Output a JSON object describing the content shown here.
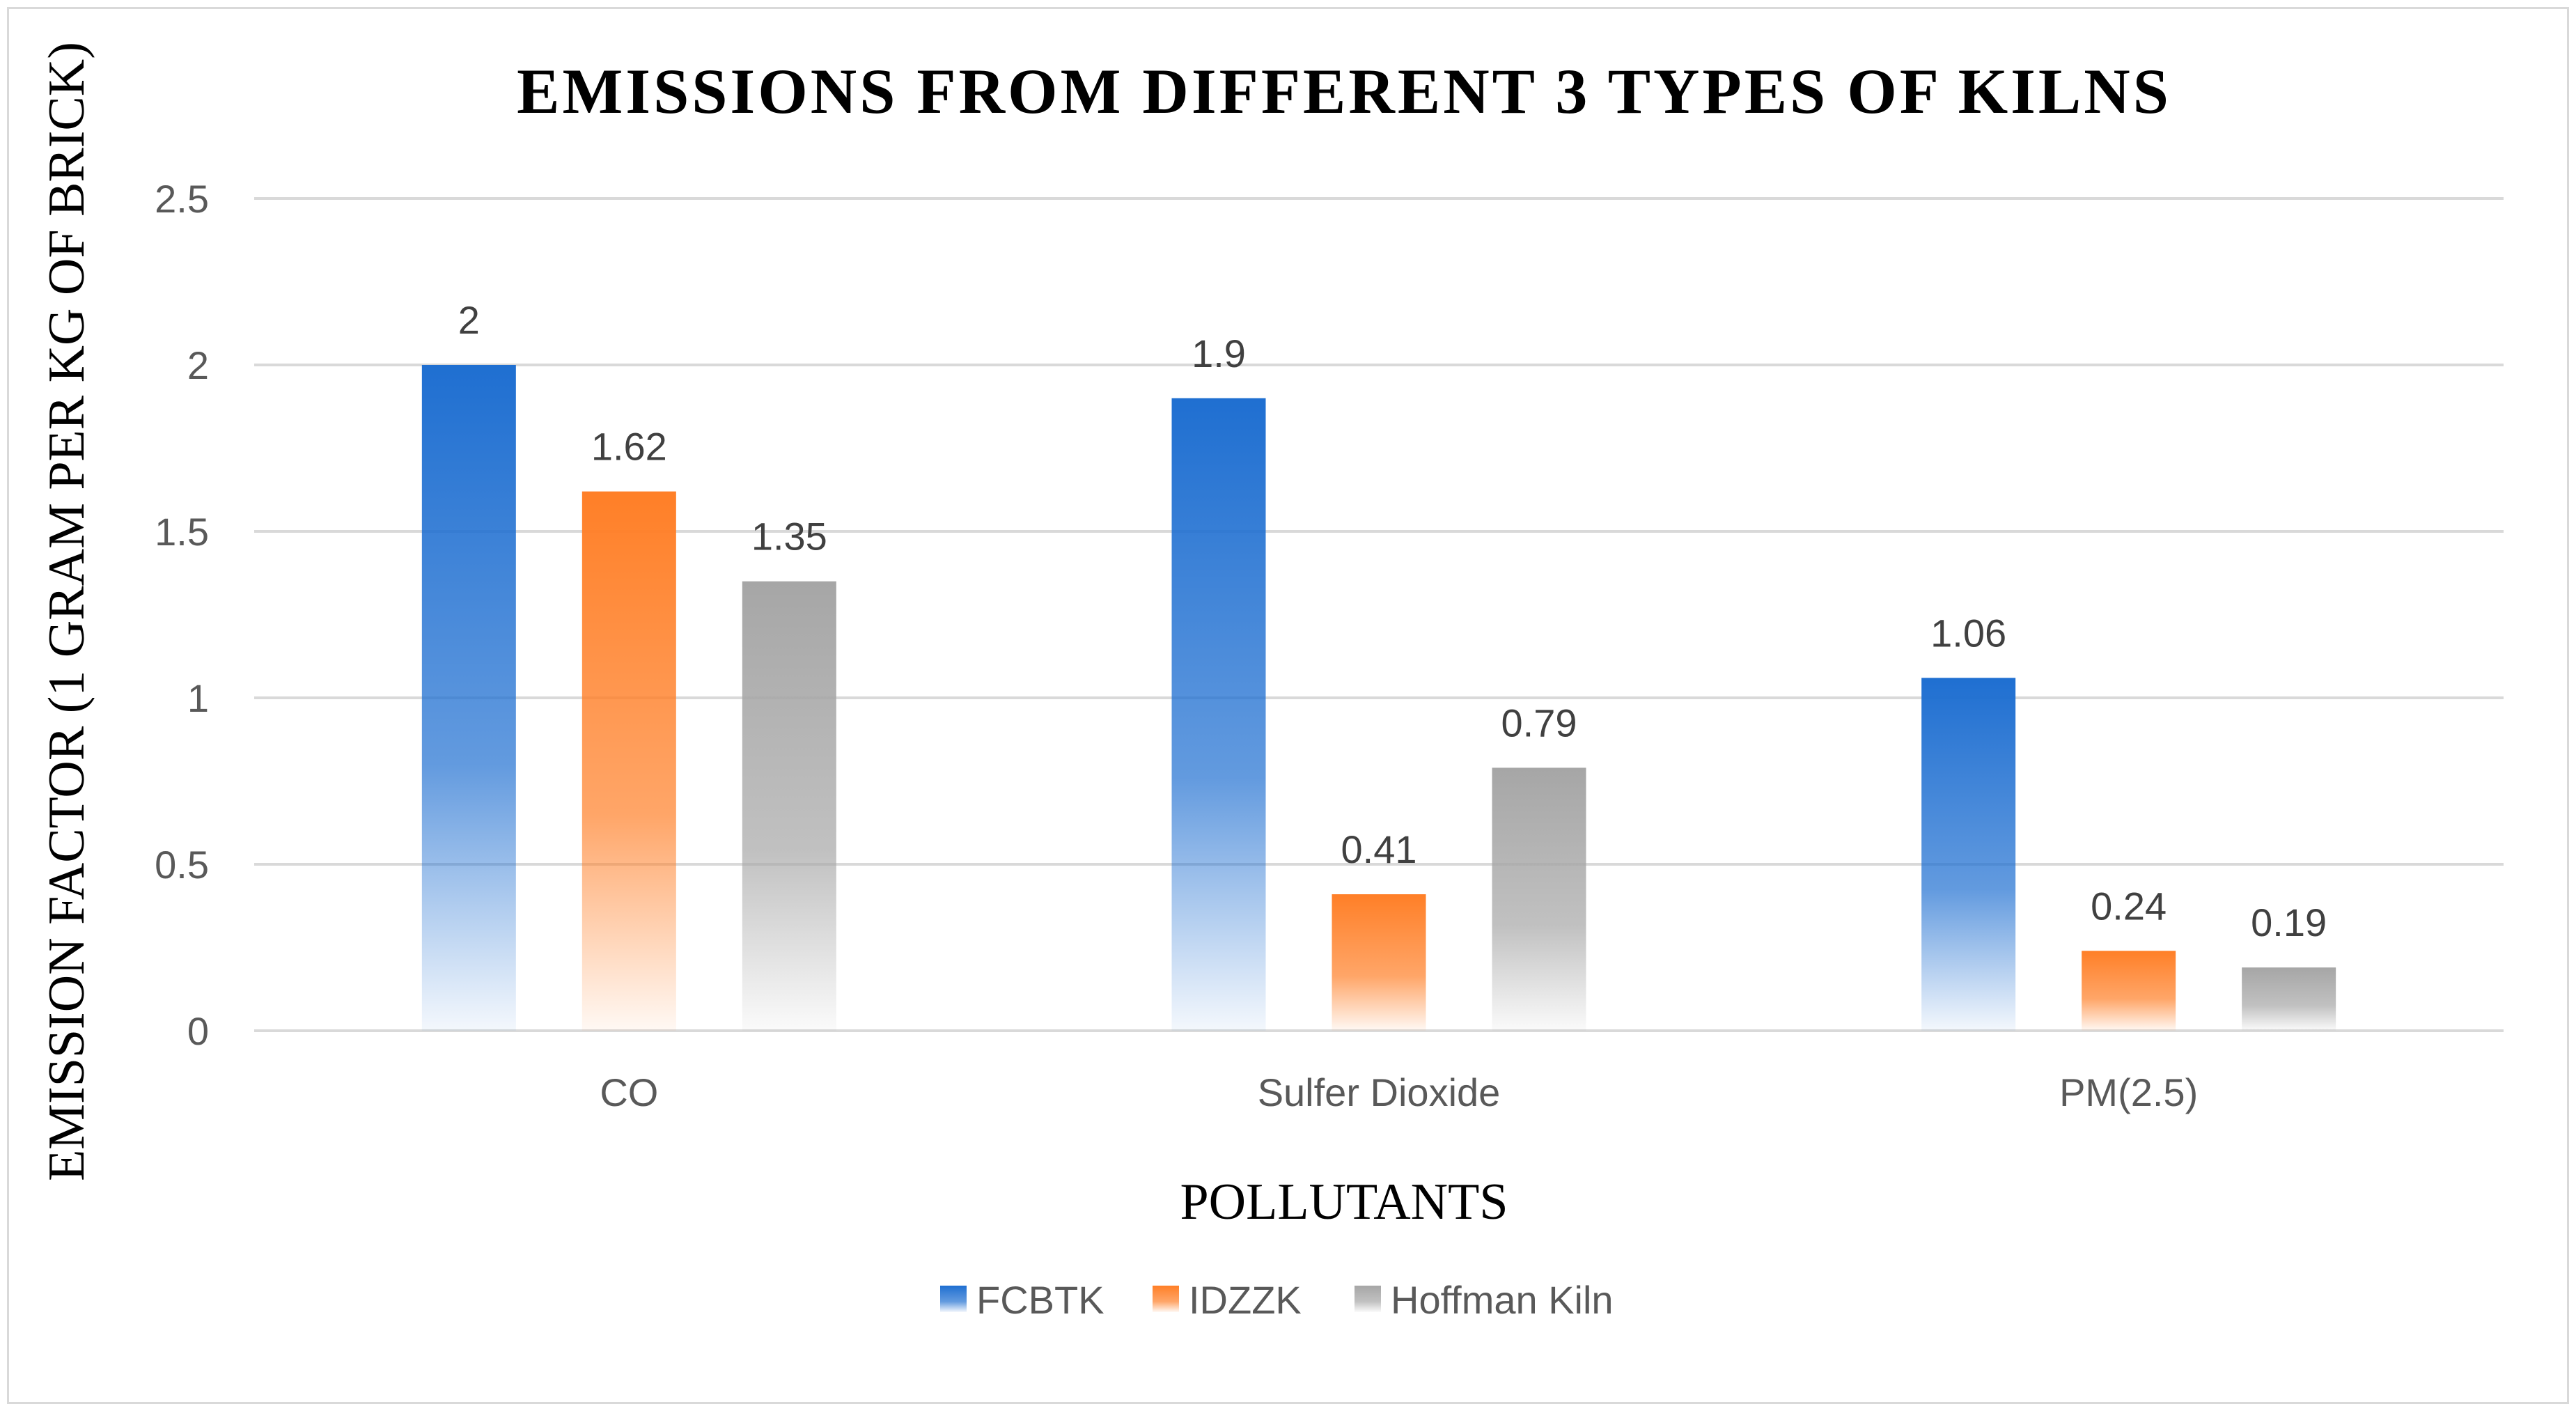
{
  "chart_data": {
    "type": "bar",
    "title": "EMISSIONS FROM DIFFERENT 3 TYPES OF KILNS",
    "xlabel": "POLLUTANTS",
    "ylabel": "EMISSION FACTOR (1 GRAM PER KG OF BRICK)",
    "categories": [
      "CO",
      "Sulfer Dioxide",
      "PM(2.5)"
    ],
    "series": [
      {
        "name": "FCBTK",
        "values": [
          2,
          1.9,
          1.06
        ],
        "color": "#1f6fd1"
      },
      {
        "name": "IDZZK",
        "values": [
          1.62,
          0.41,
          0.24
        ],
        "color": "#ff7f27"
      },
      {
        "name": "Hoffman Kiln",
        "values": [
          1.35,
          0.79,
          0.19
        ],
        "color": "#a6a6a6"
      }
    ],
    "data_labels": [
      [
        "2",
        "1.9",
        "1.06"
      ],
      [
        "1.62",
        "0.41",
        "0.24"
      ],
      [
        "1.35",
        "0.79",
        "0.19"
      ]
    ],
    "yticks": [
      "0",
      "0.5",
      "1",
      "1.5",
      "2",
      "2.5"
    ],
    "ylim": [
      0,
      2.5
    ],
    "grid": true,
    "legend_position": "bottom"
  }
}
